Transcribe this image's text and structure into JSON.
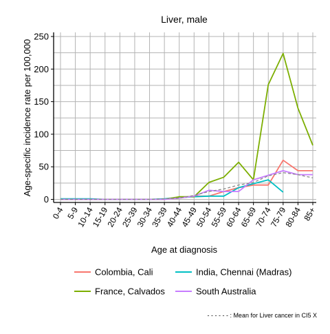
{
  "chart_data": {
    "type": "line",
    "title": "Liver, male",
    "xlabel": "Age at diagnosis",
    "ylabel": "Age-specific incidence rate per 100,000",
    "categories": [
      "0-4",
      "5-9",
      "10-14",
      "15-19",
      "20-24",
      "25-39",
      "30-34",
      "35-39",
      "40-44",
      "45-49",
      "50-54",
      "55-59",
      "60-64",
      "65-69",
      "70-74",
      "75-79",
      "80-84",
      "85+"
    ],
    "ylim": [
      0,
      255
    ],
    "yticks": [
      0,
      50,
      100,
      150,
      200,
      250
    ],
    "grid": true,
    "legend_position": "bottom",
    "series": [
      {
        "name": "Colombia, Cali",
        "color": "#F8766D",
        "dashed": false,
        "values": [
          0,
          0,
          0,
          0,
          0,
          0,
          0,
          0,
          2,
          5,
          5,
          12,
          18,
          22,
          22,
          60,
          44,
          44
        ]
      },
      {
        "name": "India, Chennai (Madras)",
        "color": "#00BFC4",
        "dashed": false,
        "values": [
          1,
          1,
          1,
          0,
          0,
          0,
          0,
          1,
          3,
          4,
          5,
          5,
          18,
          24,
          30,
          11,
          null,
          null
        ]
      },
      {
        "name": "France, Calvados",
        "color": "#7CAE00",
        "dashed": false,
        "values": [
          0,
          0,
          0,
          0,
          0,
          0,
          0,
          0,
          4,
          4,
          26,
          34,
          57,
          30,
          176,
          224,
          140,
          83
        ]
      },
      {
        "name": "South Australia",
        "color": "#C77CFF",
        "dashed": false,
        "values": [
          0,
          0,
          0,
          0,
          0,
          0,
          0,
          0,
          2,
          5,
          14,
          12,
          12,
          30,
          37,
          44,
          38,
          38
        ]
      },
      {
        "name": "",
        "color": "#888888",
        "dashed": true,
        "values": [
          0,
          0,
          0,
          0,
          0,
          0,
          0,
          1,
          2,
          6,
          12,
          16,
          22,
          26,
          36,
          41,
          38,
          33
        ]
      }
    ],
    "legend": [
      {
        "label": "Colombia, Cali",
        "color": "#F8766D"
      },
      {
        "label": "India, Chennai (Madras)",
        "color": "#00BFC4"
      },
      {
        "label": "France, Calvados",
        "color": "#7CAE00"
      },
      {
        "label": "South Australia",
        "color": "#C77CFF"
      }
    ],
    "footnote": "- - - - - - : Mean for Liver cancer in CI5 X"
  }
}
